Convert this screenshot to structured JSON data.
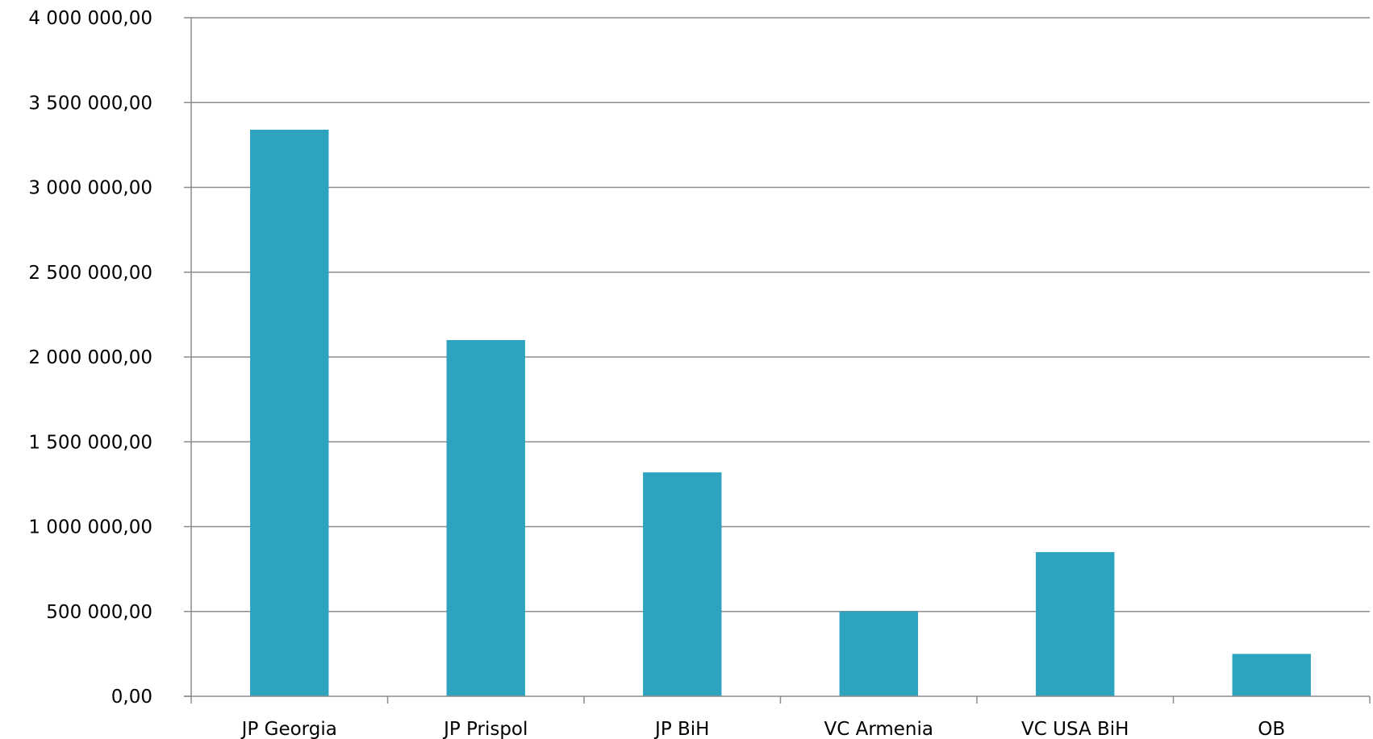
{
  "chart_data": {
    "type": "bar",
    "categories": [
      "JP Georgia",
      "JP Prispol",
      "JP BiH",
      "VC Armenia",
      "VC USA BiH",
      "OB"
    ],
    "values": [
      3340000,
      2100000,
      1320000,
      500000,
      850000,
      250000
    ],
    "ylim": [
      0,
      4000000
    ],
    "y_ticks": [
      0,
      500000,
      1000000,
      1500000,
      2000000,
      2500000,
      3000000,
      3500000,
      4000000
    ],
    "y_tick_labels": [
      "0,00",
      "500 000,00",
      "1 000 000,00",
      "1 500 000,00",
      "2 000 000,00",
      "2 500 000,00",
      "3 000 000,00",
      "3 500 000,00",
      "4 000 000,00"
    ],
    "grid": true,
    "legend": "none",
    "colors": {
      "bar": "#2ea3bf",
      "grid": "#8c8c8c",
      "axis": "#8c8c8c"
    }
  }
}
